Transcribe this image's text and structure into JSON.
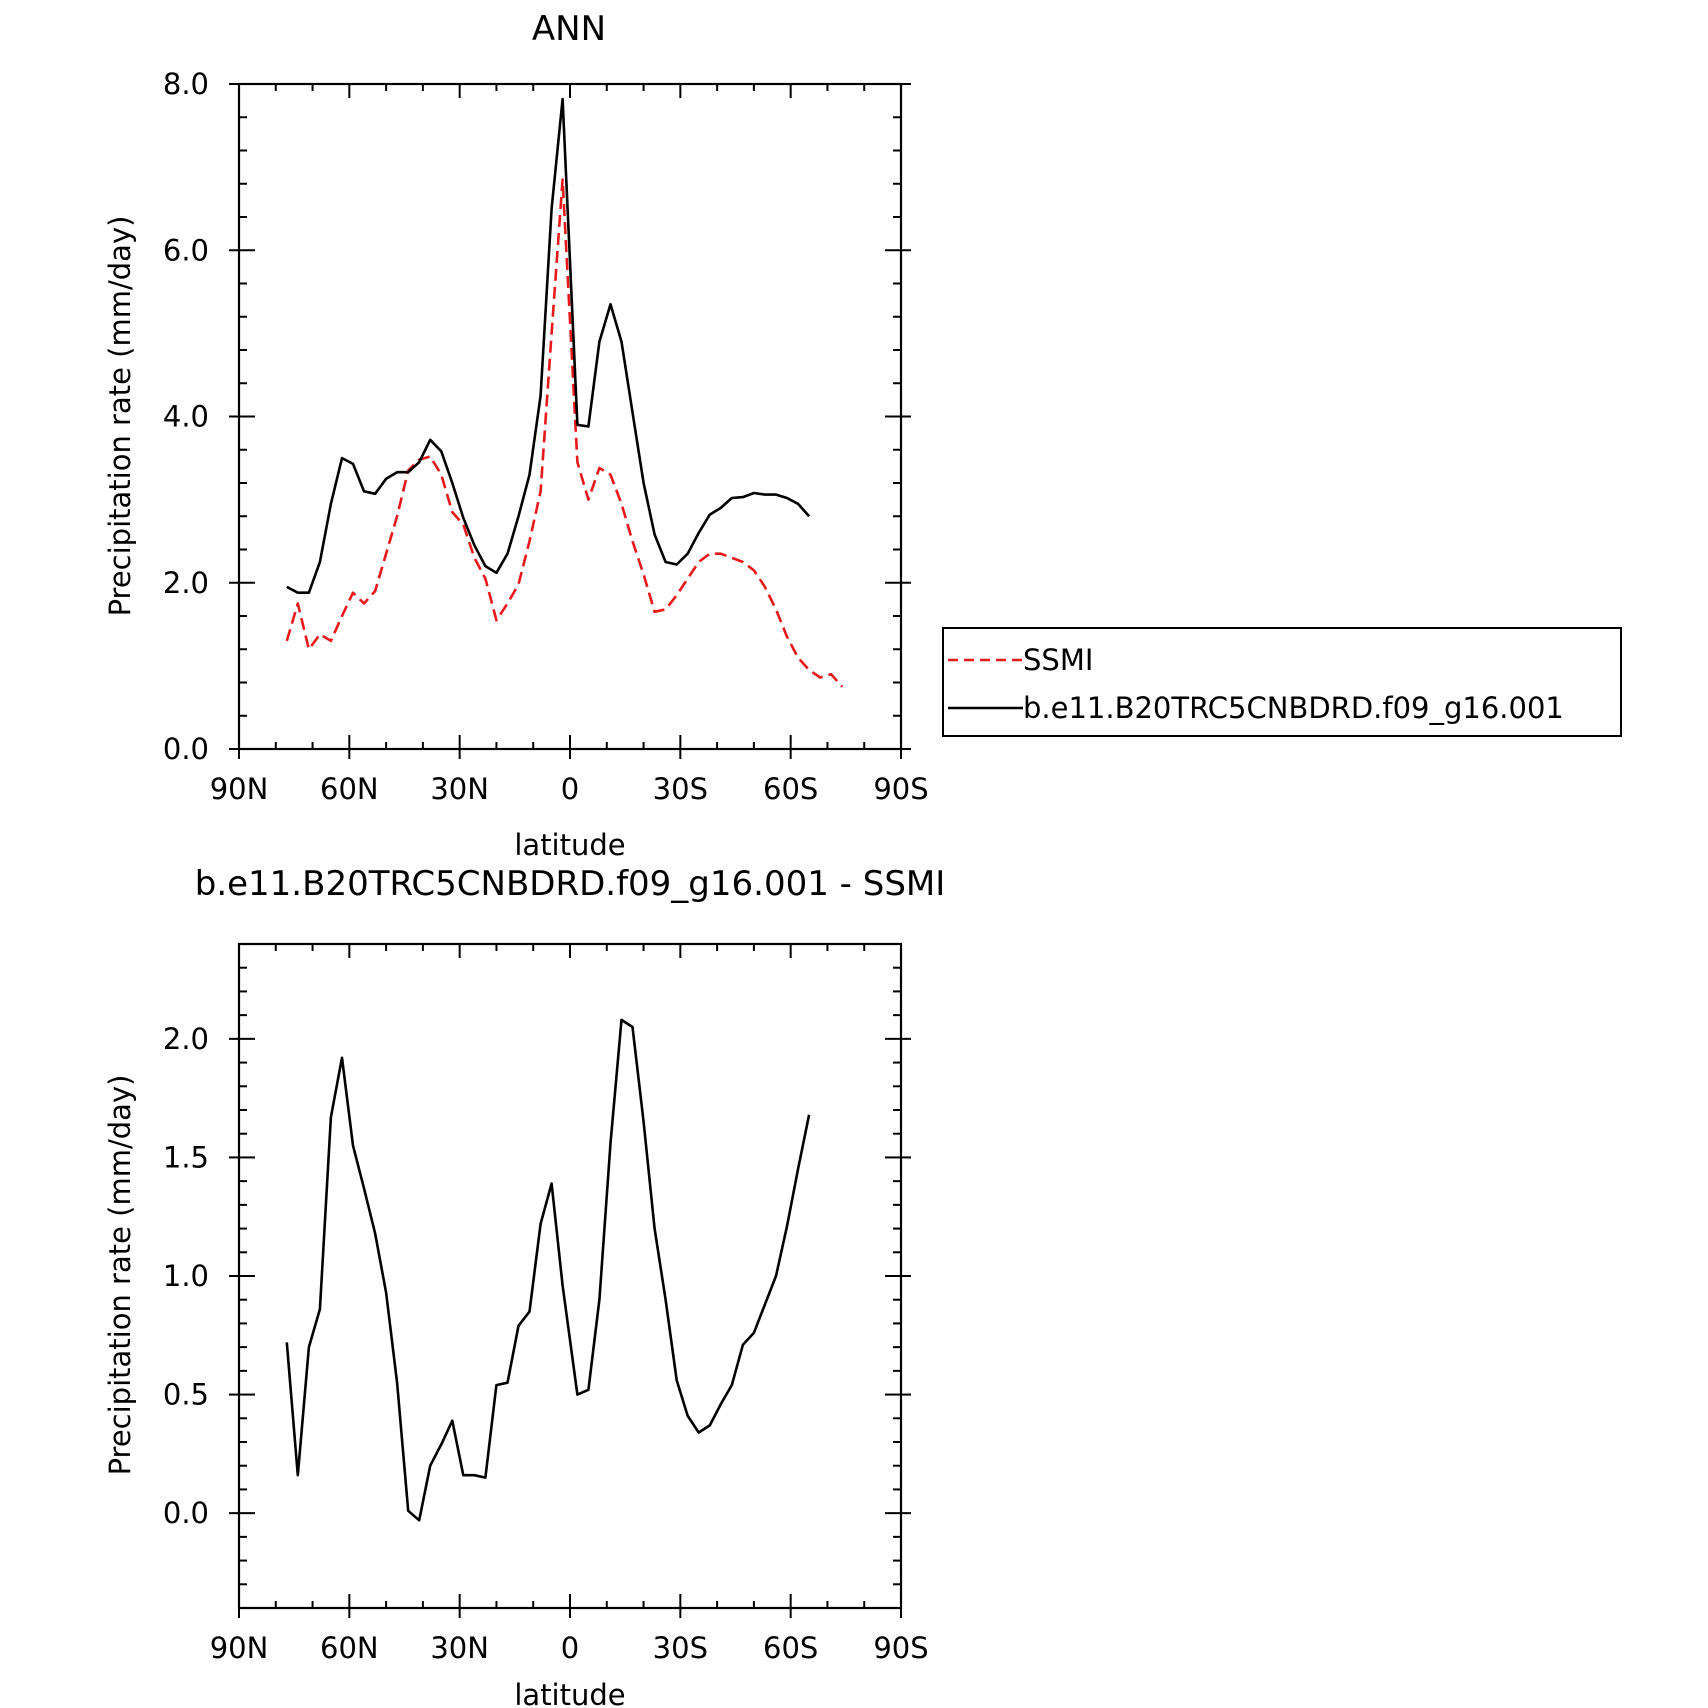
{
  "chart_data": [
    {
      "type": "line",
      "title": "ANN",
      "xlabel": "latitude",
      "ylabel": "Precipitation rate (mm/day)",
      "xlim": [
        90,
        -90
      ],
      "ylim": [
        0,
        8
      ],
      "xticks": [
        {
          "v": 90,
          "label": "90N"
        },
        {
          "v": 60,
          "label": "60N"
        },
        {
          "v": 30,
          "label": "30N"
        },
        {
          "v": 0,
          "label": "0"
        },
        {
          "v": -30,
          "label": "30S"
        },
        {
          "v": -60,
          "label": "60S"
        },
        {
          "v": -90,
          "label": "90S"
        }
      ],
      "yticks": [
        {
          "v": 0,
          "label": "0.0"
        },
        {
          "v": 2,
          "label": "2.0"
        },
        {
          "v": 4,
          "label": "4.0"
        },
        {
          "v": 6,
          "label": "6.0"
        },
        {
          "v": 8,
          "label": "8.0"
        }
      ],
      "legend_position": "right",
      "series": [
        {
          "name": "SSMI",
          "color": "#e8191b",
          "dash": "dashed",
          "x": [
            77,
            74,
            71,
            68,
            65,
            62,
            59,
            56,
            53,
            50,
            47,
            44,
            41,
            38,
            35,
            32,
            29,
            26,
            23,
            20,
            17,
            14,
            11,
            8,
            5,
            2,
            -2,
            -5,
            -8,
            -11,
            -14,
            -17,
            -20,
            -23,
            -26,
            -29,
            -32,
            -35,
            -38,
            -41,
            -44,
            -47,
            -50,
            -53,
            -56,
            -59,
            -62,
            -65,
            -68,
            -71,
            -74
          ],
          "y": [
            1.3,
            1.75,
            1.2,
            1.38,
            1.3,
            1.6,
            1.88,
            1.75,
            1.9,
            2.35,
            2.8,
            3.35,
            3.48,
            3.52,
            3.3,
            2.85,
            2.7,
            2.3,
            2.05,
            1.55,
            1.75,
            1.98,
            2.5,
            3.1,
            5.0,
            6.85,
            3.45,
            3.0,
            3.38,
            3.3,
            2.95,
            2.5,
            2.1,
            1.65,
            1.68,
            1.85,
            2.05,
            2.25,
            2.35,
            2.35,
            2.3,
            2.25,
            2.15,
            1.95,
            1.68,
            1.35,
            1.1,
            0.95,
            0.86,
            0.9,
            0.75
          ]
        },
        {
          "name": "b.e11.B20TRC5CNBDRD.f09_g16.001",
          "color": "#000000",
          "dash": "solid",
          "x": [
            77,
            74,
            71,
            68,
            65,
            62,
            59,
            56,
            53,
            50,
            47,
            44,
            41,
            38,
            35,
            32,
            29,
            26,
            23,
            20,
            17,
            14,
            11,
            8,
            5,
            2,
            -2,
            -5,
            -8,
            -11,
            -14,
            -17,
            -20,
            -23,
            -26,
            -29,
            -32,
            -35,
            -38,
            -41,
            -44,
            -47,
            -50,
            -53,
            -56,
            -59,
            -62,
            -65
          ],
          "y": [
            1.95,
            1.88,
            1.88,
            2.25,
            2.95,
            3.5,
            3.43,
            3.1,
            3.07,
            3.25,
            3.33,
            3.33,
            3.45,
            3.72,
            3.58,
            3.2,
            2.78,
            2.45,
            2.2,
            2.12,
            2.35,
            2.8,
            3.3,
            4.25,
            6.5,
            7.82,
            3.9,
            3.88,
            4.9,
            5.35,
            4.9,
            4.05,
            3.2,
            2.58,
            2.25,
            2.22,
            2.35,
            2.6,
            2.82,
            2.9,
            3.02,
            3.03,
            3.08,
            3.06,
            3.06,
            3.02,
            2.95,
            2.8
          ]
        }
      ]
    },
    {
      "type": "line",
      "title": "b.e11.B20TRC5CNBDRD.f09_g16.001 - SSMI",
      "xlabel": "latitude",
      "ylabel": "Precipitation rate (mm/day)",
      "xlim": [
        90,
        -90
      ],
      "ylim": [
        -0.4,
        2.4
      ],
      "xticks": [
        {
          "v": 90,
          "label": "90N"
        },
        {
          "v": 60,
          "label": "60N"
        },
        {
          "v": 30,
          "label": "30N"
        },
        {
          "v": 0,
          "label": "0"
        },
        {
          "v": -30,
          "label": "30S"
        },
        {
          "v": -60,
          "label": "60S"
        },
        {
          "v": -90,
          "label": "90S"
        }
      ],
      "yticks": [
        {
          "v": 0,
          "label": "0.0"
        },
        {
          "v": 0.5,
          "label": "0.5"
        },
        {
          "v": 1,
          "label": "1.0"
        },
        {
          "v": 1.5,
          "label": "1.5"
        },
        {
          "v": 2,
          "label": "2.0"
        }
      ],
      "series": [
        {
          "color": "#000000",
          "dash": "solid",
          "x": [
            77,
            74,
            71,
            68,
            65,
            62,
            59,
            56,
            53,
            50,
            47,
            44,
            41,
            38,
            35,
            32,
            29,
            26,
            23,
            20,
            17,
            14,
            11,
            8,
            5,
            2,
            -2,
            -5,
            -8,
            -11,
            -14,
            -17,
            -20,
            -23,
            -26,
            -29,
            -32,
            -35,
            -38,
            -41,
            -44,
            -47,
            -50,
            -53,
            -56,
            -59,
            -62,
            -65
          ],
          "y": [
            0.72,
            0.16,
            0.7,
            0.86,
            1.67,
            1.92,
            1.55,
            1.37,
            1.18,
            0.93,
            0.55,
            0.01,
            -0.03,
            0.2,
            0.29,
            0.39,
            0.16,
            0.16,
            0.15,
            0.54,
            0.55,
            0.79,
            0.85,
            1.22,
            1.39,
            0.96,
            0.5,
            0.52,
            0.9,
            1.56,
            2.08,
            2.05,
            1.65,
            1.2,
            0.9,
            0.56,
            0.41,
            0.34,
            0.37,
            0.46,
            0.54,
            0.71,
            0.76,
            0.88,
            1.0,
            1.21,
            1.45,
            1.68
          ]
        }
      ]
    }
  ]
}
